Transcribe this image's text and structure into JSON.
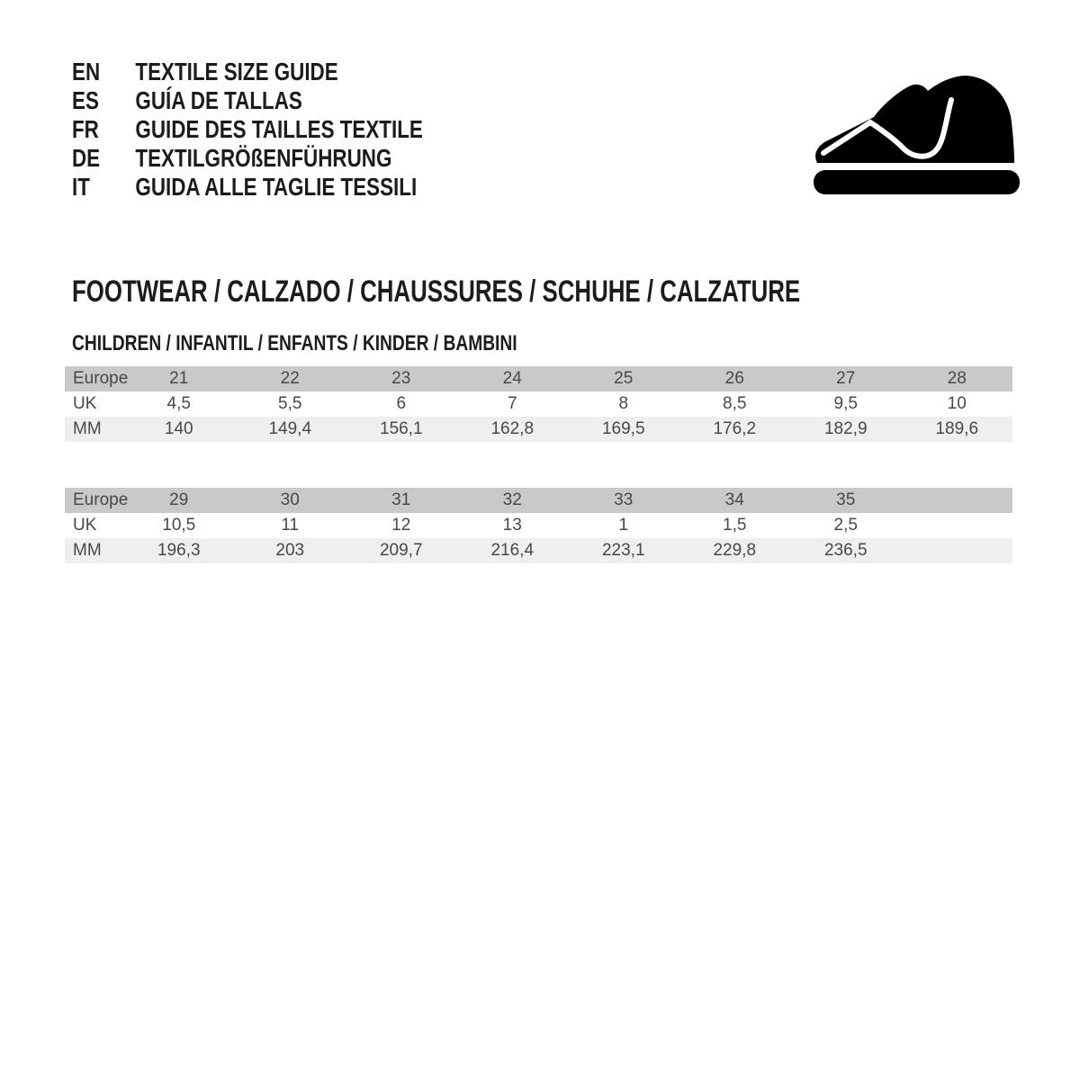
{
  "languages": [
    {
      "code": "EN",
      "label": "TEXTILE SIZE GUIDE"
    },
    {
      "code": "ES",
      "label": "GUÍA DE TALLAS"
    },
    {
      "code": "FR",
      "label": "GUIDE DES TAILLES TEXTILE"
    },
    {
      "code": "DE",
      "label": "TEXTILGRÖßENFÜHRUNG"
    },
    {
      "code": "IT",
      "label": "GUIDA ALLE TAGLIE TESSILI"
    }
  ],
  "icon": {
    "name": "children-shoe-icon",
    "color": "#000000"
  },
  "section": {
    "title": "FOOTWEAR / CALZADO / CHAUSSURES / SCHUHE / CALZATURE",
    "subtitle": "CHILDREN / INFANTIL / ENFANTS / KINDER / BAMBINI"
  },
  "tables": [
    {
      "rows": [
        {
          "label": "Europe",
          "values": [
            "21",
            "22",
            "23",
            "24",
            "25",
            "26",
            "27",
            "28"
          ]
        },
        {
          "label": "UK",
          "values": [
            "4,5",
            "5,5",
            "6",
            "7",
            "8",
            "8,5",
            "9,5",
            "10"
          ]
        },
        {
          "label": "MM",
          "values": [
            "140",
            "149,4",
            "156,1",
            "162,8",
            "169,5",
            "176,2",
            "182,9",
            "189,6"
          ]
        }
      ]
    },
    {
      "rows": [
        {
          "label": "Europe",
          "values": [
            "29",
            "30",
            "31",
            "32",
            "33",
            "34",
            "35",
            ""
          ]
        },
        {
          "label": "UK",
          "values": [
            "10,5",
            "11",
            "12",
            "13",
            "1",
            "1,5",
            "2,5",
            ""
          ]
        },
        {
          "label": "MM",
          "values": [
            "196,3",
            "203",
            "209,7",
            "216,4",
            "223,1",
            "229,8",
            "236,5",
            ""
          ]
        }
      ]
    }
  ],
  "colors": {
    "header_row_bg": "#c9c9c9",
    "alt_row_bg": "#efefef",
    "table_text": "#484848",
    "heading_text": "#1c1c1c",
    "icon": "#000000"
  }
}
